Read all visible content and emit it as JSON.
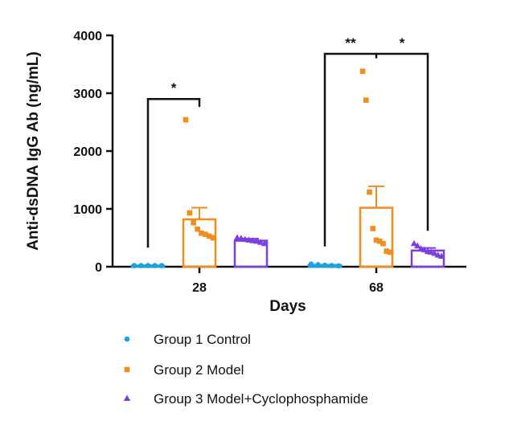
{
  "chart_data": {
    "type": "bar",
    "xlabel": "Days",
    "ylabel": "Anti-dsDNA IgG Ab (ng/mL)",
    "ylim": [
      0,
      4000
    ],
    "yticks": [
      0,
      1000,
      2000,
      3000,
      4000
    ],
    "categories": [
      "28",
      "68"
    ],
    "grid": false,
    "legend_position": "bottom-left",
    "series": [
      {
        "name": "Group 1 Control",
        "color": "#1aa3e0",
        "marker": "circle",
        "bar_filled": false,
        "means": [
          20,
          30
        ],
        "errors": [
          5,
          5
        ],
        "points": [
          [
            20,
            20,
            20,
            20,
            20
          ],
          [
            45,
            35,
            25,
            20,
            15
          ]
        ]
      },
      {
        "name": "Group 2 Model",
        "color": "#f28c1b",
        "marker": "square",
        "bar_filled": false,
        "means": [
          820,
          1020
        ],
        "errors": [
          200,
          370
        ],
        "points": [
          [
            2540,
            930,
            760,
            650,
            580,
            560,
            530,
            500
          ],
          [
            3380,
            2880,
            1290,
            660,
            460,
            440,
            400,
            270,
            250
          ]
        ]
      },
      {
        "name": "Group 3 Model+Cyclophosphamide",
        "color": "#7a3fe0",
        "marker": "triangle",
        "bar_filled": false,
        "means": [
          450,
          280
        ],
        "errors": [
          35,
          45
        ],
        "points": [
          [
            500,
            490,
            470,
            460,
            450,
            440,
            420,
            400
          ],
          [
            400,
            360,
            310,
            290,
            260,
            250,
            230,
            200,
            180
          ]
        ]
      }
    ],
    "significance": [
      {
        "category": "28",
        "from": 0,
        "to": 1,
        "label": "*",
        "y": 2900
      },
      {
        "category": "68",
        "from": 0,
        "to": 1,
        "label": "**",
        "y": 3680
      },
      {
        "category": "68",
        "from": 1,
        "to": 2,
        "label": "*",
        "y": 3680
      }
    ]
  }
}
